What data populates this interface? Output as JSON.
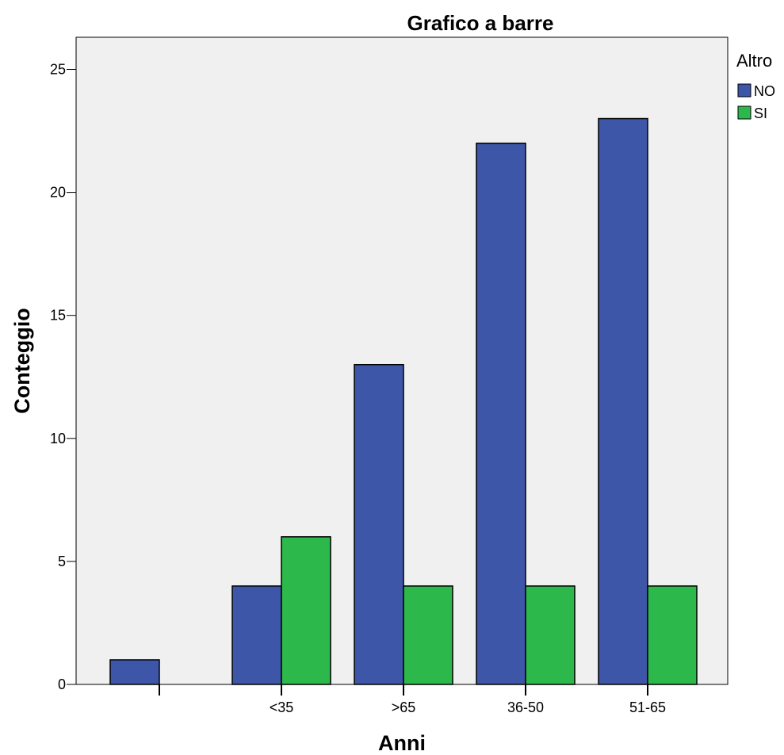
{
  "chart_data": {
    "type": "bar",
    "title": "Grafico a barre",
    "xlabel": "Anni",
    "ylabel": "Conteggio",
    "categories": [
      "",
      "<35",
      ">65",
      "36-50",
      "51-65"
    ],
    "series": [
      {
        "name": "NO",
        "values": [
          1,
          4,
          13,
          22,
          23
        ],
        "color": "#3e56a8"
      },
      {
        "name": "SI",
        "values": [
          0,
          6,
          4,
          4,
          4
        ],
        "color": "#2db84b"
      }
    ],
    "ylim": [
      0,
      26.3
    ],
    "yticks": [
      0,
      5,
      10,
      15,
      20,
      25
    ],
    "grid": false,
    "legend": {
      "title": "Altro",
      "position": "right"
    },
    "plot_background": "#f0f0f0"
  }
}
